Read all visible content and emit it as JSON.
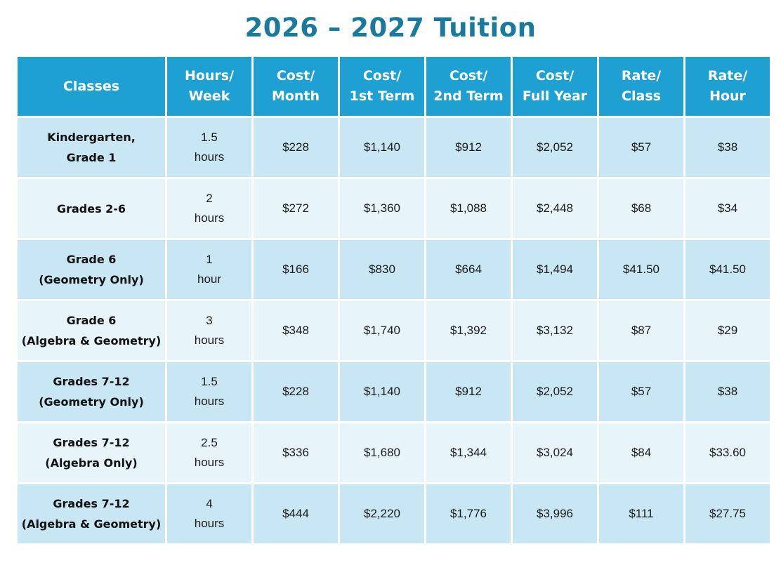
{
  "title": "2026 – 2027 Tuition",
  "table": {
    "headers": [
      [
        "Classes"
      ],
      [
        "Hours/",
        "Week"
      ],
      [
        "Cost/",
        "Month"
      ],
      [
        "Cost/",
        "1st Term"
      ],
      [
        "Cost/",
        "2nd Term"
      ],
      [
        "Cost/",
        "Full Year"
      ],
      [
        "Rate/",
        "Class"
      ],
      [
        "Rate/",
        "Hour"
      ]
    ],
    "rows": [
      {
        "class_lines": [
          "Kindergarten,",
          "Grade 1"
        ],
        "hours_lines": [
          "1.5",
          "hours"
        ],
        "cost_month": "$228",
        "cost_term1": "$1,140",
        "cost_term2": "$912",
        "cost_year": "$2,052",
        "rate_class": "$57",
        "rate_hour": "$38"
      },
      {
        "class_lines": [
          "Grades 2-6"
        ],
        "hours_lines": [
          "2",
          "hours"
        ],
        "cost_month": "$272",
        "cost_term1": "$1,360",
        "cost_term2": "$1,088",
        "cost_year": "$2,448",
        "rate_class": "$68",
        "rate_hour": "$34"
      },
      {
        "class_lines": [
          "Grade 6",
          "(Geometry Only)"
        ],
        "hours_lines": [
          "1",
          "hour"
        ],
        "cost_month": "$166",
        "cost_term1": "$830",
        "cost_term2": "$664",
        "cost_year": "$1,494",
        "rate_class": "$41.50",
        "rate_hour": "$41.50"
      },
      {
        "class_lines": [
          "Grade 6",
          "(Algebra & Geometry)"
        ],
        "hours_lines": [
          "3",
          "hours"
        ],
        "cost_month": "$348",
        "cost_term1": "$1,740",
        "cost_term2": "$1,392",
        "cost_year": "$3,132",
        "rate_class": "$87",
        "rate_hour": "$29"
      },
      {
        "class_lines": [
          "Grades 7-12",
          "(Geometry Only)"
        ],
        "hours_lines": [
          "1.5",
          "hours"
        ],
        "cost_month": "$228",
        "cost_term1": "$1,140",
        "cost_term2": "$912",
        "cost_year": "$2,052",
        "rate_class": "$57",
        "rate_hour": "$38"
      },
      {
        "class_lines": [
          "Grades 7-12",
          "(Algebra Only)"
        ],
        "hours_lines": [
          "2.5",
          "hours"
        ],
        "cost_month": "$336",
        "cost_term1": "$1,680",
        "cost_term2": "$1,344",
        "cost_year": "$3,024",
        "rate_class": "$84",
        "rate_hour": "$33.60"
      },
      {
        "class_lines": [
          "Grades 7-12",
          "(Algebra & Geometry)"
        ],
        "hours_lines": [
          "4",
          "hours"
        ],
        "cost_month": "$444",
        "cost_term1": "$2,220",
        "cost_term2": "$1,776",
        "cost_year": "$3,996",
        "rate_class": "$111",
        "rate_hour": "$27.75"
      }
    ]
  },
  "colors": {
    "title": "#1a7a9e",
    "header_bg": "#1ea0d2",
    "header_text": "#ffffff",
    "row_dark": "#c8e6f3",
    "row_light": "#e7f5fb"
  }
}
